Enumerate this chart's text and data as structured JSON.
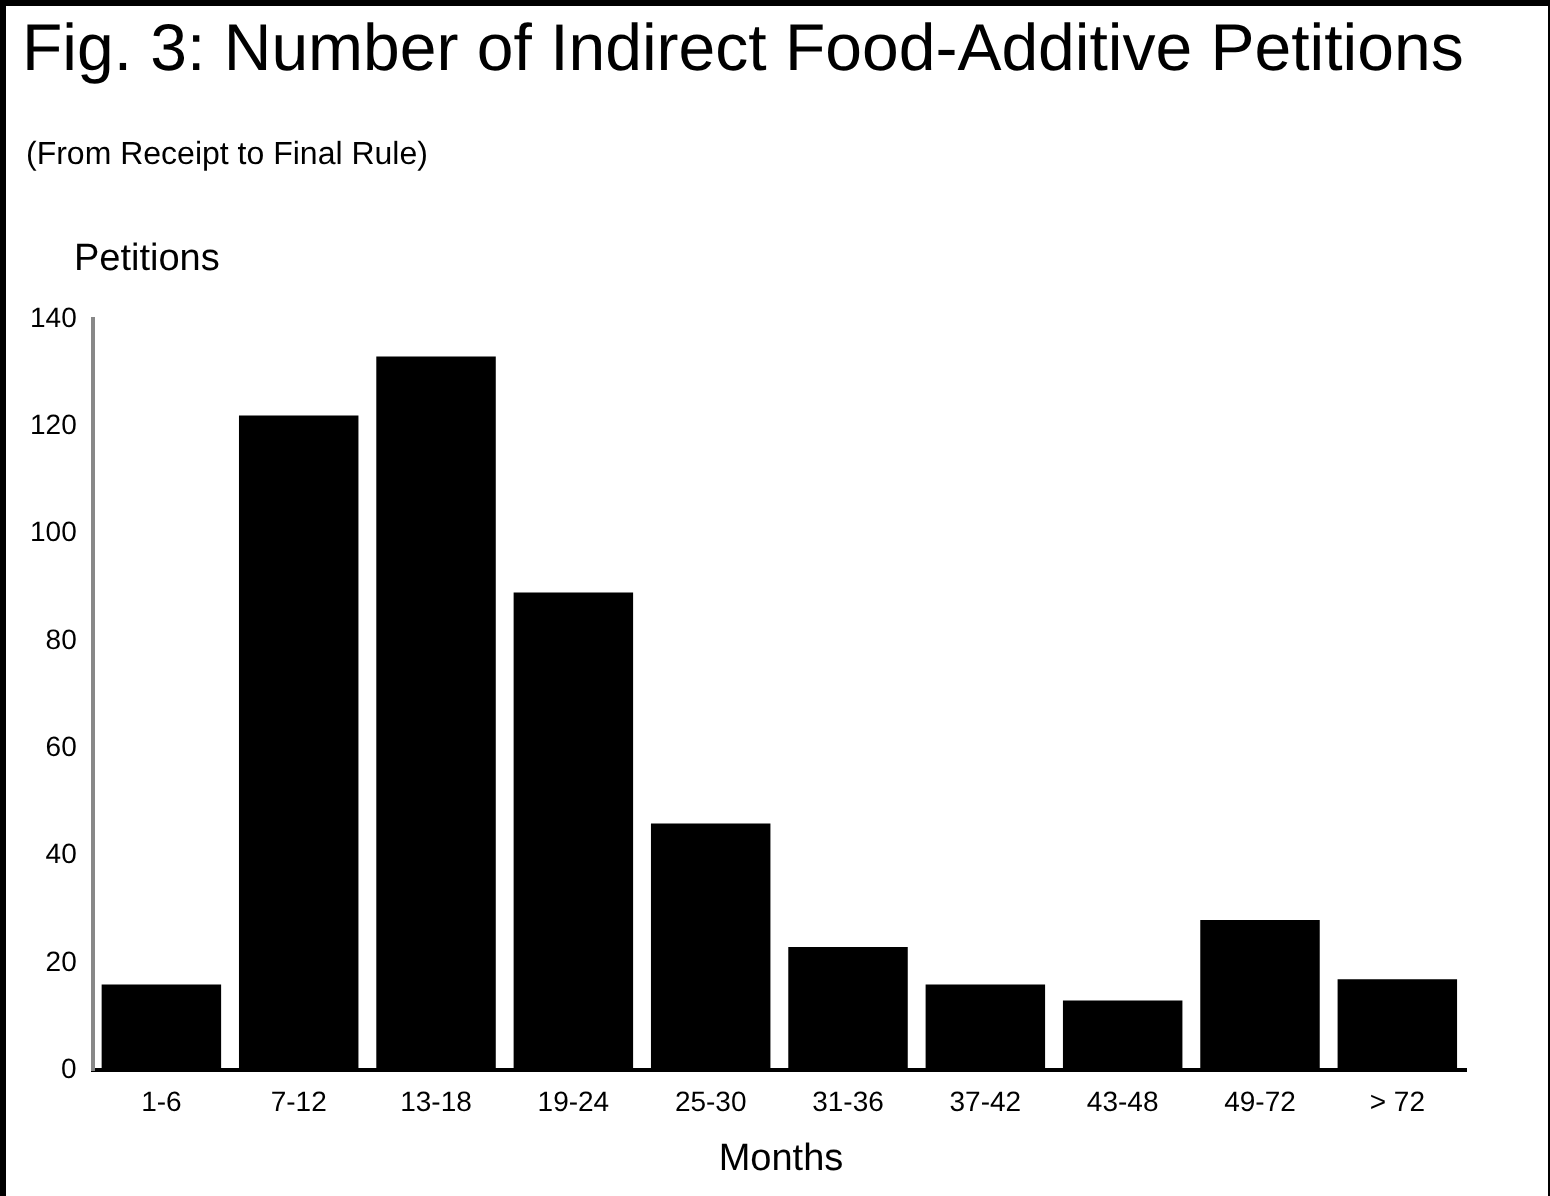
{
  "chart_data": {
    "type": "bar",
    "title": "Fig. 3: Number of Indirect Food-Additive Petitions",
    "subtitle": "(From Receipt to Final Rule)",
    "ylabel": "Petitions",
    "xlabel": "Months",
    "categories": [
      "1-6",
      "7-12",
      "13-18",
      "19-24",
      "25-30",
      "31-36",
      "37-42",
      "43-48",
      "49-72",
      "> 72"
    ],
    "values": [
      16,
      122,
      133,
      89,
      46,
      23,
      16,
      13,
      28,
      17
    ],
    "color": "#000000",
    "ylim": [
      0,
      140
    ],
    "yticks": [
      0,
      20,
      40,
      60,
      80,
      100,
      120,
      140
    ],
    "grid": false,
    "legend": false
  }
}
